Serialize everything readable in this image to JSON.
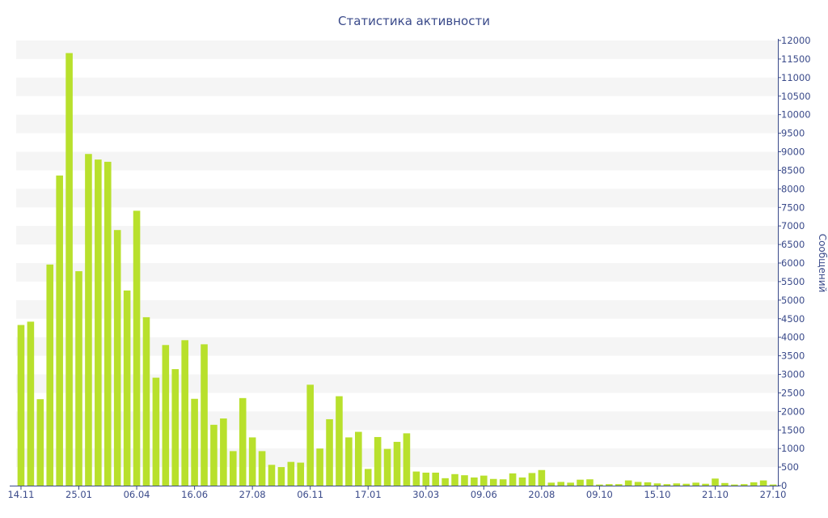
{
  "chart_data": {
    "type": "bar",
    "title": "Статистика активности",
    "ylabel": "Сообщений",
    "xlabel": "",
    "ylim": [
      0,
      12000
    ],
    "y_ticks": [
      0,
      500,
      1000,
      1500,
      2000,
      2500,
      3000,
      3500,
      4000,
      4500,
      5000,
      5500,
      6000,
      6500,
      7000,
      7500,
      8000,
      8500,
      9000,
      9500,
      10000,
      10500,
      11000,
      11500,
      12000
    ],
    "x_tick_labels": [
      {
        "label": "14.11",
        "index": 0
      },
      {
        "label": "25.01",
        "index": 6
      },
      {
        "label": "06.04",
        "index": 12
      },
      {
        "label": "16.06",
        "index": 18
      },
      {
        "label": "27.08",
        "index": 24
      },
      {
        "label": "06.11",
        "index": 30
      },
      {
        "label": "17.01",
        "index": 36
      },
      {
        "label": "30.03",
        "index": 42
      },
      {
        "label": "09.06",
        "index": 48
      },
      {
        "label": "20.08",
        "index": 54
      },
      {
        "label": "09.10",
        "index": 60
      },
      {
        "label": "15.10",
        "index": 66
      },
      {
        "label": "21.10",
        "index": 72
      },
      {
        "label": "27.10",
        "index": 78
      }
    ],
    "values": [
      4330,
      4420,
      2330,
      5960,
      8360,
      11660,
      5780,
      8940,
      8790,
      8730,
      6890,
      5260,
      7410,
      4540,
      2910,
      3790,
      3140,
      3920,
      2340,
      3810,
      1640,
      1810,
      930,
      2360,
      1300,
      930,
      560,
      500,
      640,
      620,
      2720,
      1000,
      1790,
      2410,
      1300,
      1450,
      450,
      1310,
      990,
      1180,
      1410,
      380,
      350,
      350,
      200,
      310,
      280,
      220,
      270,
      180,
      170,
      330,
      220,
      340,
      420,
      80,
      100,
      80,
      160,
      170,
      30,
      40,
      40,
      140,
      100,
      90,
      60,
      40,
      60,
      50,
      80,
      50,
      190,
      70,
      30,
      40,
      90,
      140,
      30
    ],
    "bar_color": "#b8e02c",
    "band_color": "#f5f5f5",
    "text_color": "#3a4a8a",
    "axis_color": "#3a4a8a",
    "grid": "alternating-bands",
    "y_axis_side": "right",
    "legend": "none"
  }
}
